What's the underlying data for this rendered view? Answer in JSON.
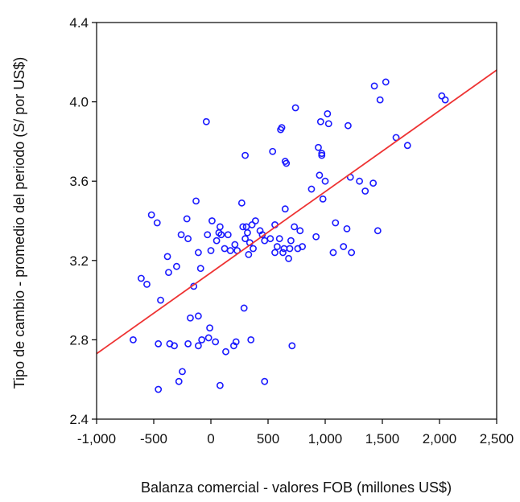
{
  "chart_data": {
    "type": "scatter",
    "title": "",
    "xlabel": "Balanza comercial - valores FOB (millones US$)",
    "ylabel": "Tipo de cambio - promedio del periodo (S/ por US$)",
    "xlim": [
      -1000,
      2500
    ],
    "ylim": [
      2.4,
      4.4
    ],
    "x_ticks": [
      -1000,
      -500,
      0,
      500,
      1000,
      1500,
      2000,
      2500
    ],
    "x_tick_labels": [
      "-1,000",
      "-500",
      "0",
      "500",
      "1,000",
      "1,500",
      "2,000",
      "2,500"
    ],
    "y_ticks": [
      2.4,
      2.8,
      3.2,
      3.6,
      4.0,
      4.4
    ],
    "y_tick_labels": [
      "2.4",
      "2.8",
      "3.2",
      "3.6",
      "4.0",
      "4.4"
    ],
    "grid": false,
    "legend": "none",
    "colors": {
      "points": "#1a1aff",
      "fit_line": "#ee3333",
      "axis": "#000000"
    },
    "fit_line": {
      "x": [
        -1000,
        2500
      ],
      "y": [
        2.73,
        4.16
      ]
    },
    "points": [
      {
        "x": -680,
        "y": 2.8
      },
      {
        "x": -610,
        "y": 3.11
      },
      {
        "x": -560,
        "y": 3.08
      },
      {
        "x": -520,
        "y": 3.43
      },
      {
        "x": -470,
        "y": 3.39
      },
      {
        "x": -460,
        "y": 2.55
      },
      {
        "x": -460,
        "y": 2.78
      },
      {
        "x": -440,
        "y": 3.0
      },
      {
        "x": -380,
        "y": 3.22
      },
      {
        "x": -370,
        "y": 3.14
      },
      {
        "x": -360,
        "y": 2.78
      },
      {
        "x": -320,
        "y": 2.77
      },
      {
        "x": -300,
        "y": 3.17
      },
      {
        "x": -280,
        "y": 2.59
      },
      {
        "x": -260,
        "y": 3.33
      },
      {
        "x": -250,
        "y": 2.64
      },
      {
        "x": -210,
        "y": 3.41
      },
      {
        "x": -200,
        "y": 2.78
      },
      {
        "x": -200,
        "y": 3.31
      },
      {
        "x": -180,
        "y": 2.91
      },
      {
        "x": -150,
        "y": 3.07
      },
      {
        "x": -130,
        "y": 3.5
      },
      {
        "x": -110,
        "y": 2.77
      },
      {
        "x": -110,
        "y": 2.92
      },
      {
        "x": -110,
        "y": 3.24
      },
      {
        "x": -90,
        "y": 3.16
      },
      {
        "x": -80,
        "y": 2.8
      },
      {
        "x": -40,
        "y": 3.9
      },
      {
        "x": -30,
        "y": 3.33
      },
      {
        "x": -20,
        "y": 2.81
      },
      {
        "x": -10,
        "y": 2.86
      },
      {
        "x": 0,
        "y": 3.25
      },
      {
        "x": 10,
        "y": 3.4
      },
      {
        "x": 40,
        "y": 2.79
      },
      {
        "x": 50,
        "y": 3.3
      },
      {
        "x": 70,
        "y": 3.34
      },
      {
        "x": 80,
        "y": 3.37
      },
      {
        "x": 80,
        "y": 2.57
      },
      {
        "x": 90,
        "y": 3.33
      },
      {
        "x": 120,
        "y": 3.26
      },
      {
        "x": 130,
        "y": 2.74
      },
      {
        "x": 150,
        "y": 3.33
      },
      {
        "x": 170,
        "y": 3.25
      },
      {
        "x": 200,
        "y": 2.77
      },
      {
        "x": 210,
        "y": 3.28
      },
      {
        "x": 220,
        "y": 2.79
      },
      {
        "x": 230,
        "y": 3.25
      },
      {
        "x": 270,
        "y": 3.49
      },
      {
        "x": 280,
        "y": 3.37
      },
      {
        "x": 290,
        "y": 2.96
      },
      {
        "x": 300,
        "y": 3.31
      },
      {
        "x": 300,
        "y": 3.73
      },
      {
        "x": 310,
        "y": 3.37
      },
      {
        "x": 320,
        "y": 3.34
      },
      {
        "x": 330,
        "y": 3.23
      },
      {
        "x": 340,
        "y": 3.29
      },
      {
        "x": 350,
        "y": 2.8
      },
      {
        "x": 360,
        "y": 3.38
      },
      {
        "x": 370,
        "y": 3.26
      },
      {
        "x": 390,
        "y": 3.4
      },
      {
        "x": 430,
        "y": 3.35
      },
      {
        "x": 450,
        "y": 3.33
      },
      {
        "x": 470,
        "y": 2.59
      },
      {
        "x": 470,
        "y": 3.3
      },
      {
        "x": 520,
        "y": 3.31
      },
      {
        "x": 540,
        "y": 3.75
      },
      {
        "x": 560,
        "y": 3.24
      },
      {
        "x": 560,
        "y": 3.38
      },
      {
        "x": 580,
        "y": 3.27
      },
      {
        "x": 600,
        "y": 3.31
      },
      {
        "x": 610,
        "y": 3.86
      },
      {
        "x": 620,
        "y": 3.87
      },
      {
        "x": 630,
        "y": 3.24
      },
      {
        "x": 640,
        "y": 3.26
      },
      {
        "x": 650,
        "y": 3.46
      },
      {
        "x": 650,
        "y": 3.7
      },
      {
        "x": 660,
        "y": 3.69
      },
      {
        "x": 680,
        "y": 3.21
      },
      {
        "x": 690,
        "y": 3.26
      },
      {
        "x": 700,
        "y": 3.3
      },
      {
        "x": 710,
        "y": 2.77
      },
      {
        "x": 730,
        "y": 3.37
      },
      {
        "x": 740,
        "y": 3.97
      },
      {
        "x": 760,
        "y": 3.26
      },
      {
        "x": 780,
        "y": 3.35
      },
      {
        "x": 800,
        "y": 3.27
      },
      {
        "x": 880,
        "y": 3.56
      },
      {
        "x": 920,
        "y": 3.32
      },
      {
        "x": 940,
        "y": 3.77
      },
      {
        "x": 950,
        "y": 3.63
      },
      {
        "x": 960,
        "y": 3.9
      },
      {
        "x": 970,
        "y": 3.73
      },
      {
        "x": 970,
        "y": 3.74
      },
      {
        "x": 980,
        "y": 3.51
      },
      {
        "x": 1000,
        "y": 3.6
      },
      {
        "x": 1020,
        "y": 3.94
      },
      {
        "x": 1030,
        "y": 3.89
      },
      {
        "x": 1070,
        "y": 3.24
      },
      {
        "x": 1090,
        "y": 3.39
      },
      {
        "x": 1160,
        "y": 3.27
      },
      {
        "x": 1190,
        "y": 3.36
      },
      {
        "x": 1200,
        "y": 3.88
      },
      {
        "x": 1220,
        "y": 3.62
      },
      {
        "x": 1230,
        "y": 3.24
      },
      {
        "x": 1300,
        "y": 3.6
      },
      {
        "x": 1350,
        "y": 3.55
      },
      {
        "x": 1420,
        "y": 3.59
      },
      {
        "x": 1430,
        "y": 4.08
      },
      {
        "x": 1460,
        "y": 3.35
      },
      {
        "x": 1480,
        "y": 4.01
      },
      {
        "x": 1530,
        "y": 4.1
      },
      {
        "x": 1620,
        "y": 3.82
      },
      {
        "x": 1720,
        "y": 3.78
      },
      {
        "x": 2020,
        "y": 4.03
      },
      {
        "x": 2050,
        "y": 4.01
      }
    ]
  }
}
